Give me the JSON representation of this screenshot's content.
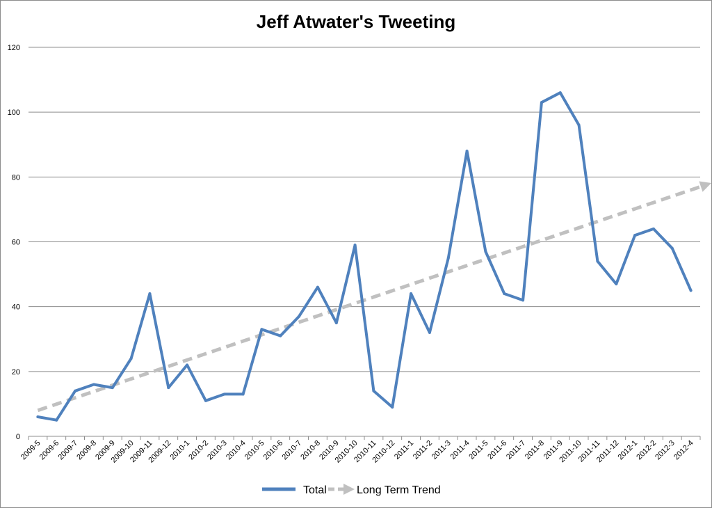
{
  "chart_data": {
    "type": "line",
    "title": "Jeff Atwater's Tweeting",
    "xlabel": "",
    "ylabel": "",
    "ylim": [
      0,
      120
    ],
    "yticks": [
      0,
      20,
      40,
      60,
      80,
      100,
      120
    ],
    "grid": true,
    "legend_position": "bottom",
    "categories": [
      "2009-5",
      "2009-6",
      "2009-7",
      "2009-8",
      "2009-9",
      "2009-10",
      "2009-11",
      "2009-12",
      "2010-1",
      "2010-2",
      "2010-3",
      "2010-4",
      "2010-5",
      "2010-6",
      "2010-7",
      "2010-8",
      "2010-9",
      "2010-10",
      "2010-11",
      "2010-12",
      "2011-1",
      "2011-2",
      "2011-3",
      "2011-4",
      "2011-5",
      "2011-6",
      "2011-7",
      "2011-8",
      "2011-9",
      "2011-10",
      "2011-11",
      "2011-12",
      "2012-1",
      "2012-2",
      "2012-3",
      "2012-4"
    ],
    "series": [
      {
        "name": "Total",
        "color": "#4f81bd",
        "values": [
          6,
          5,
          14,
          16,
          15,
          24,
          44,
          15,
          22,
          11,
          13,
          13,
          33,
          31,
          37,
          46,
          35,
          59,
          14,
          9,
          44,
          32,
          55,
          88,
          57,
          44,
          42,
          103,
          106,
          96,
          54,
          47,
          62,
          64,
          58,
          45
        ]
      },
      {
        "name": "Long Term Trend",
        "color": "#c0c0c0",
        "style": "dashed-arrow",
        "start": [
          "2009-5",
          8
        ],
        "end": [
          "2012-4",
          76
        ]
      }
    ]
  }
}
